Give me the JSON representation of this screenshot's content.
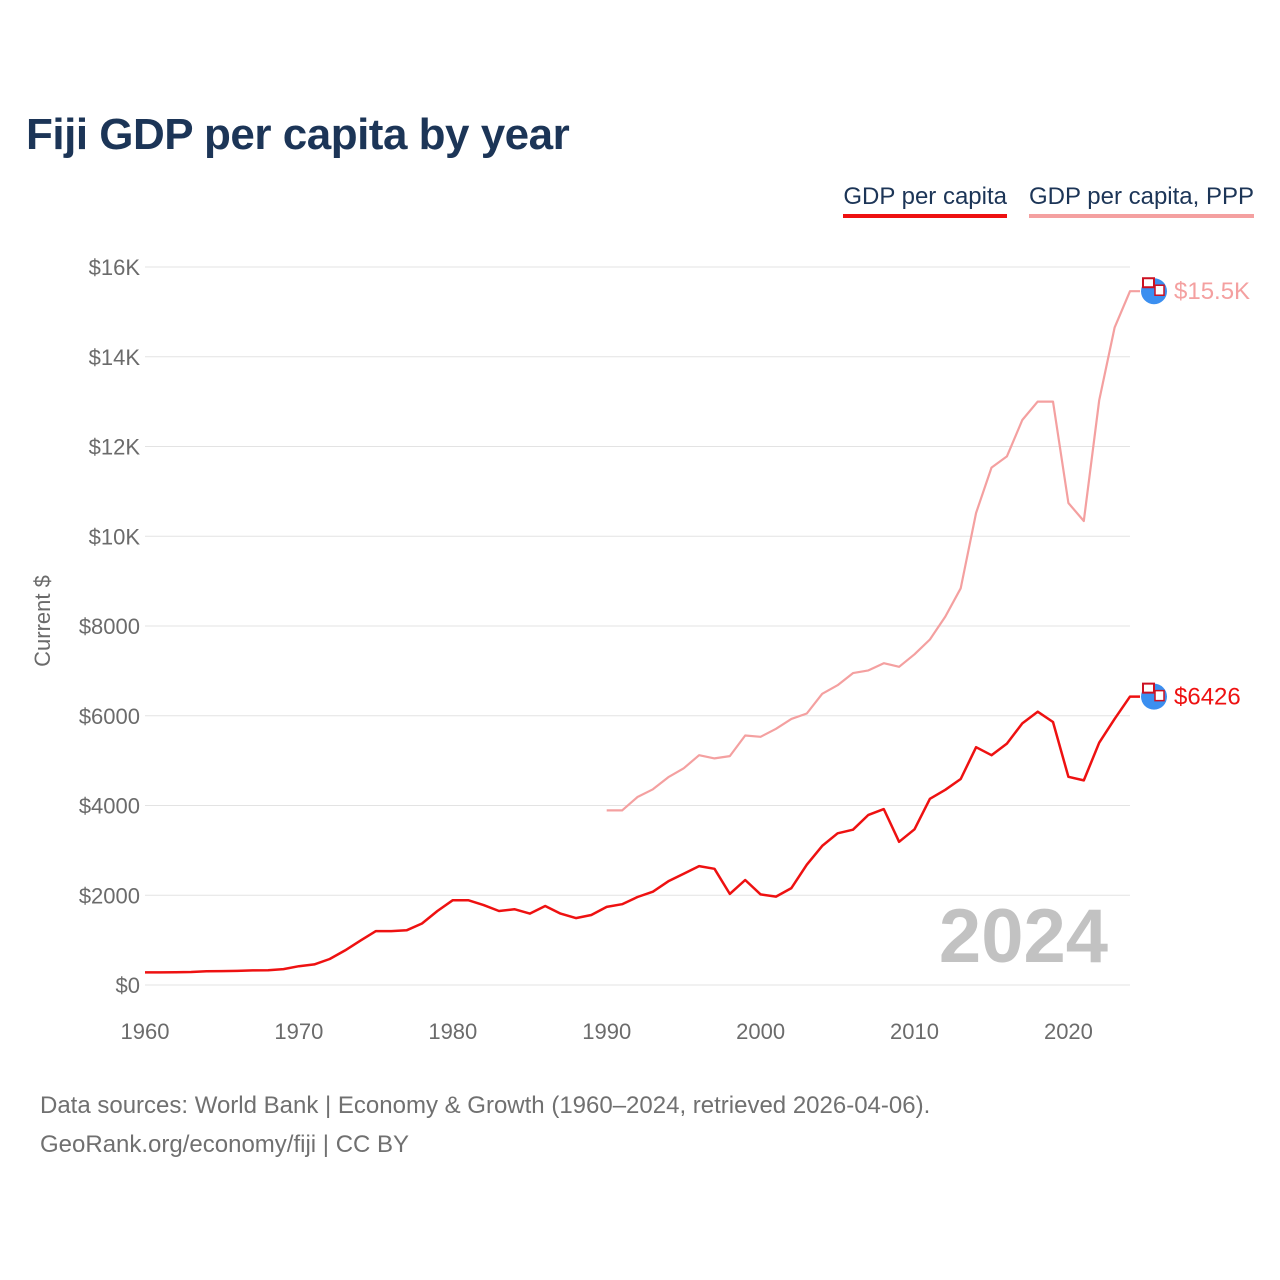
{
  "title": "Fiji GDP per capita by year",
  "legend": {
    "gdp": "GDP per capita",
    "ppp": "GDP per capita, PPP"
  },
  "source_line1": "Data sources: World Bank | Economy & Growth (1960–2024, retrieved 2026-04-06).",
  "source_line2": "GeoRank.org/economy/fiji | CC BY",
  "colors": {
    "gdp": "#ee1111",
    "ppp": "#f4a0a0",
    "title": "#1c3557",
    "marker": "#3b8ff0"
  },
  "chart_data": {
    "type": "line",
    "title": "Fiji GDP per capita by year",
    "xlabel": "",
    "ylabel": "Current $",
    "xlim": [
      1960,
      2024
    ],
    "ylim": [
      0,
      16000
    ],
    "x_ticks": [
      1960,
      1970,
      1980,
      1990,
      2000,
      2010,
      2020
    ],
    "y_ticks": [
      {
        "value": 0,
        "label": "$0"
      },
      {
        "value": 2000,
        "label": "$2000"
      },
      {
        "value": 4000,
        "label": "$4000"
      },
      {
        "value": 6000,
        "label": "$6000"
      },
      {
        "value": 8000,
        "label": "$8000"
      },
      {
        "value": 10000,
        "label": "$10K"
      },
      {
        "value": 12000,
        "label": "$12K"
      },
      {
        "value": 14000,
        "label": "$14K"
      },
      {
        "value": 16000,
        "label": "$16K"
      }
    ],
    "current_year": "2024",
    "series": [
      {
        "name": "GDP per capita",
        "end_label": "$6426",
        "x": [
          1960,
          1961,
          1962,
          1963,
          1964,
          1965,
          1966,
          1967,
          1968,
          1969,
          1970,
          1971,
          1972,
          1973,
          1974,
          1975,
          1976,
          1977,
          1978,
          1979,
          1980,
          1981,
          1982,
          1983,
          1984,
          1985,
          1986,
          1987,
          1988,
          1989,
          1990,
          1991,
          1992,
          1993,
          1994,
          1995,
          1996,
          1997,
          1998,
          1999,
          2000,
          2001,
          2002,
          2003,
          2004,
          2005,
          2006,
          2007,
          2008,
          2009,
          2010,
          2011,
          2012,
          2013,
          2014,
          2015,
          2016,
          2017,
          2018,
          2019,
          2020,
          2021,
          2022,
          2023,
          2024
        ],
        "values": [
          280,
          280,
          285,
          290,
          305,
          310,
          315,
          325,
          330,
          355,
          420,
          460,
          580,
          770,
          990,
          1200,
          1200,
          1220,
          1370,
          1650,
          1890,
          1890,
          1780,
          1650,
          1690,
          1590,
          1760,
          1590,
          1490,
          1560,
          1740,
          1800,
          1960,
          2080,
          2310,
          2480,
          2650,
          2590,
          2030,
          2340,
          2020,
          1970,
          2160,
          2680,
          3100,
          3380,
          3460,
          3790,
          3920,
          3190,
          3470,
          4150,
          4350,
          4590,
          5300,
          5120,
          5380,
          5830,
          6090,
          5860,
          4640,
          4560,
          5400,
          5930,
          6426
        ]
      },
      {
        "name": "GDP per capita, PPP",
        "end_label": "$15.5K",
        "x": [
          1990,
          1991,
          1992,
          1993,
          1994,
          1995,
          1996,
          1997,
          1998,
          1999,
          2000,
          2001,
          2002,
          2003,
          2004,
          2005,
          2006,
          2007,
          2008,
          2009,
          2010,
          2011,
          2012,
          2013,
          2014,
          2015,
          2016,
          2017,
          2018,
          2019,
          2020,
          2021,
          2022,
          2023,
          2024
        ],
        "values": [
          3890,
          3890,
          4190,
          4360,
          4630,
          4830,
          5120,
          5050,
          5100,
          5560,
          5530,
          5710,
          5930,
          6050,
          6490,
          6680,
          6950,
          7010,
          7170,
          7090,
          7370,
          7700,
          8210,
          8840,
          10520,
          11530,
          11780,
          12590,
          13000,
          13000,
          10740,
          10340,
          13030,
          14650,
          15460
        ]
      }
    ]
  }
}
